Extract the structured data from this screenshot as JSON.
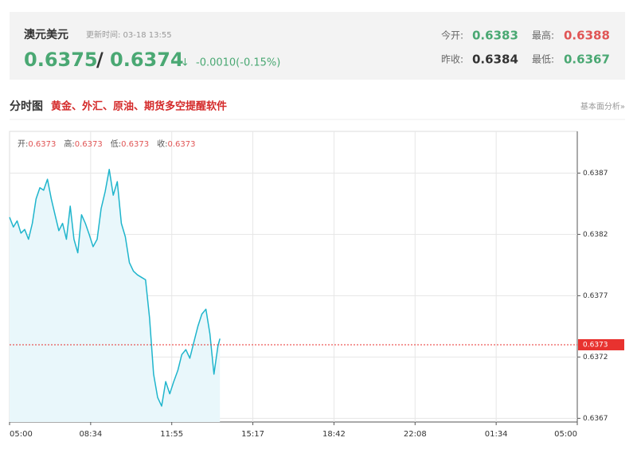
{
  "header": {
    "name": "澳元美元",
    "update_time": "更新时间: 03-18 13:55",
    "bid": "0.6375",
    "separator": "/",
    "ask": "0.6374",
    "arrow": "↓",
    "change": "-0.0010(-0.15%)",
    "stats": [
      {
        "label": "今开:",
        "value": "0.6383"
      },
      {
        "label": "最高:",
        "value": "0.6388"
      },
      {
        "label": "昨收:",
        "value": "0.6384"
      },
      {
        "label": "最低:",
        "value": "0.6367"
      }
    ]
  },
  "section": {
    "title": "分时图",
    "promo": "黄金、外汇、原油、期货多空提醒软件",
    "link": "基本面分析»"
  },
  "chart_data": {
    "type": "line",
    "ohlc": [
      {
        "label": "开:",
        "value": 0.6373
      },
      {
        "label": "高:",
        "value": 0.6373
      },
      {
        "label": "低:",
        "value": 0.6373
      },
      {
        "label": "收:",
        "value": 0.6373
      }
    ],
    "x": [
      "05:00",
      "05:10",
      "05:20",
      "05:30",
      "05:40",
      "05:50",
      "06:00",
      "06:10",
      "06:20",
      "06:30",
      "06:40",
      "06:50",
      "07:00",
      "07:10",
      "07:20",
      "07:30",
      "07:40",
      "07:50",
      "08:00",
      "08:10",
      "08:20",
      "08:30",
      "08:40",
      "08:50",
      "09:00",
      "09:10",
      "09:20",
      "09:30",
      "09:40",
      "09:50",
      "10:00",
      "10:10",
      "10:20",
      "10:30",
      "10:40",
      "10:50",
      "11:00",
      "11:10",
      "11:20",
      "11:30",
      "11:40",
      "11:50",
      "12:00",
      "12:10",
      "12:20",
      "12:30",
      "12:40",
      "12:50",
      "13:00",
      "13:10",
      "13:20",
      "13:30",
      "13:40",
      "13:50",
      "13:55"
    ],
    "values": [
      0.63834,
      0.63826,
      0.63831,
      0.63821,
      0.63824,
      0.63816,
      0.63829,
      0.63849,
      0.63858,
      0.63856,
      0.63865,
      0.63849,
      0.63836,
      0.63823,
      0.63829,
      0.63816,
      0.63843,
      0.63816,
      0.63805,
      0.63836,
      0.63829,
      0.6382,
      0.6381,
      0.63816,
      0.63841,
      0.63855,
      0.63873,
      0.63852,
      0.63863,
      0.63829,
      0.63818,
      0.63797,
      0.6379,
      0.63787,
      0.63785,
      0.63783,
      0.63752,
      0.63706,
      0.63687,
      0.6368,
      0.637,
      0.6369,
      0.637,
      0.63709,
      0.63722,
      0.63726,
      0.63719,
      0.63732,
      0.63745,
      0.63755,
      0.63759,
      0.63739,
      0.63706,
      0.63729,
      0.63735
    ],
    "color": "#1fb5cc",
    "ylim": [
      0.63667,
      0.63904
    ],
    "yticks": [
      0.6367,
      0.6372,
      0.6377,
      0.6382,
      0.6387
    ],
    "xticks": [
      "05:00",
      "08:34",
      "11:55",
      "15:17",
      "18:42",
      "22:08",
      "01:34",
      "05:00"
    ],
    "current_price": 0.6373,
    "current_color": "#e8322f",
    "grid": true
  }
}
